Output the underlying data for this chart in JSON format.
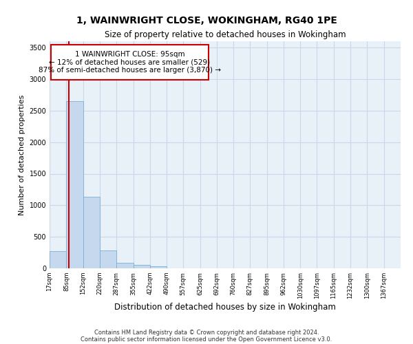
{
  "title": "1, WAINWRIGHT CLOSE, WOKINGHAM, RG40 1PE",
  "subtitle": "Size of property relative to detached houses in Wokingham",
  "xlabel": "Distribution of detached houses by size in Wokingham",
  "ylabel": "Number of detached properties",
  "bar_color": "#c5d8ee",
  "bar_edge_color": "#7aafd4",
  "grid_color": "#c8d8e8",
  "background_color": "#e8f0f8",
  "annotation_box_color": "#cc0000",
  "annotation_line1": "1 WAINWRIGHT CLOSE: 95sqm",
  "annotation_line2": "← 12% of detached houses are smaller (529)",
  "annotation_line3": "87% of semi-detached houses are larger (3,870) →",
  "property_sqm": 95,
  "bin_labels": [
    "17sqm",
    "85sqm",
    "152sqm",
    "220sqm",
    "287sqm",
    "355sqm",
    "422sqm",
    "490sqm",
    "557sqm",
    "625sqm",
    "692sqm",
    "760sqm",
    "827sqm",
    "895sqm",
    "962sqm",
    "1030sqm",
    "1097sqm",
    "1165sqm",
    "1232sqm",
    "1300sqm",
    "1367sqm"
  ],
  "bin_edges": [
    17,
    85,
    152,
    220,
    287,
    355,
    422,
    490,
    557,
    625,
    692,
    760,
    827,
    895,
    962,
    1030,
    1097,
    1165,
    1232,
    1300,
    1367
  ],
  "bar_heights": [
    270,
    2650,
    1140,
    285,
    90,
    55,
    35,
    0,
    0,
    0,
    0,
    0,
    0,
    0,
    0,
    0,
    0,
    0,
    0,
    0
  ],
  "ylim": [
    0,
    3600
  ],
  "yticks": [
    0,
    500,
    1000,
    1500,
    2000,
    2500,
    3000,
    3500
  ],
  "vline_x": 95,
  "vline_color": "#cc0000",
  "footer1": "Contains HM Land Registry data © Crown copyright and database right 2024.",
  "footer2": "Contains public sector information licensed under the Open Government Licence v3.0."
}
